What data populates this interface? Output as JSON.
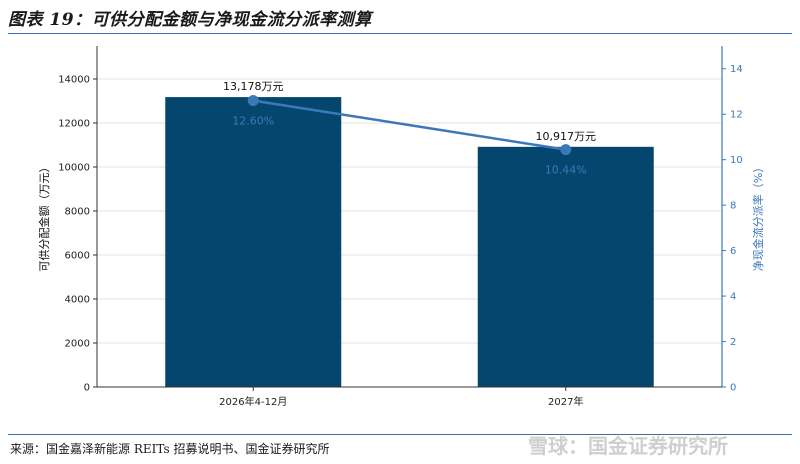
{
  "header": {
    "title": "图表 19：可供分配金额与净现金流分派率测算"
  },
  "footer": {
    "source": "来源：国金嘉泽新能源 REITs 招募说明书、国金证券研究所",
    "watermark": "雪球：国金证券研究所"
  },
  "chart_data": {
    "type": "bar+line",
    "categories": [
      "2026年4-12月",
      "2027年"
    ],
    "series": [
      {
        "kind": "bar",
        "axis": "left",
        "values": [
          13178,
          10917
        ],
        "labels": [
          "13,178万元",
          "10,917万元"
        ],
        "color": "#05466e"
      },
      {
        "kind": "line",
        "axis": "right",
        "values": [
          12.6,
          10.44
        ],
        "labels": [
          "12.60%",
          "10.44%"
        ],
        "color": "#3b78b8"
      }
    ],
    "ylabel": "可供分配金额（万元）",
    "ylabel_right": "净现金流分派率（%）",
    "ylim": [
      0,
      15500
    ],
    "yticks": [
      0,
      2000,
      4000,
      6000,
      8000,
      10000,
      12000,
      14000
    ],
    "ylim_right": [
      0,
      15
    ],
    "yticks_right": [
      0,
      2,
      4,
      6,
      8,
      10,
      12,
      14
    ],
    "grid": true
  }
}
